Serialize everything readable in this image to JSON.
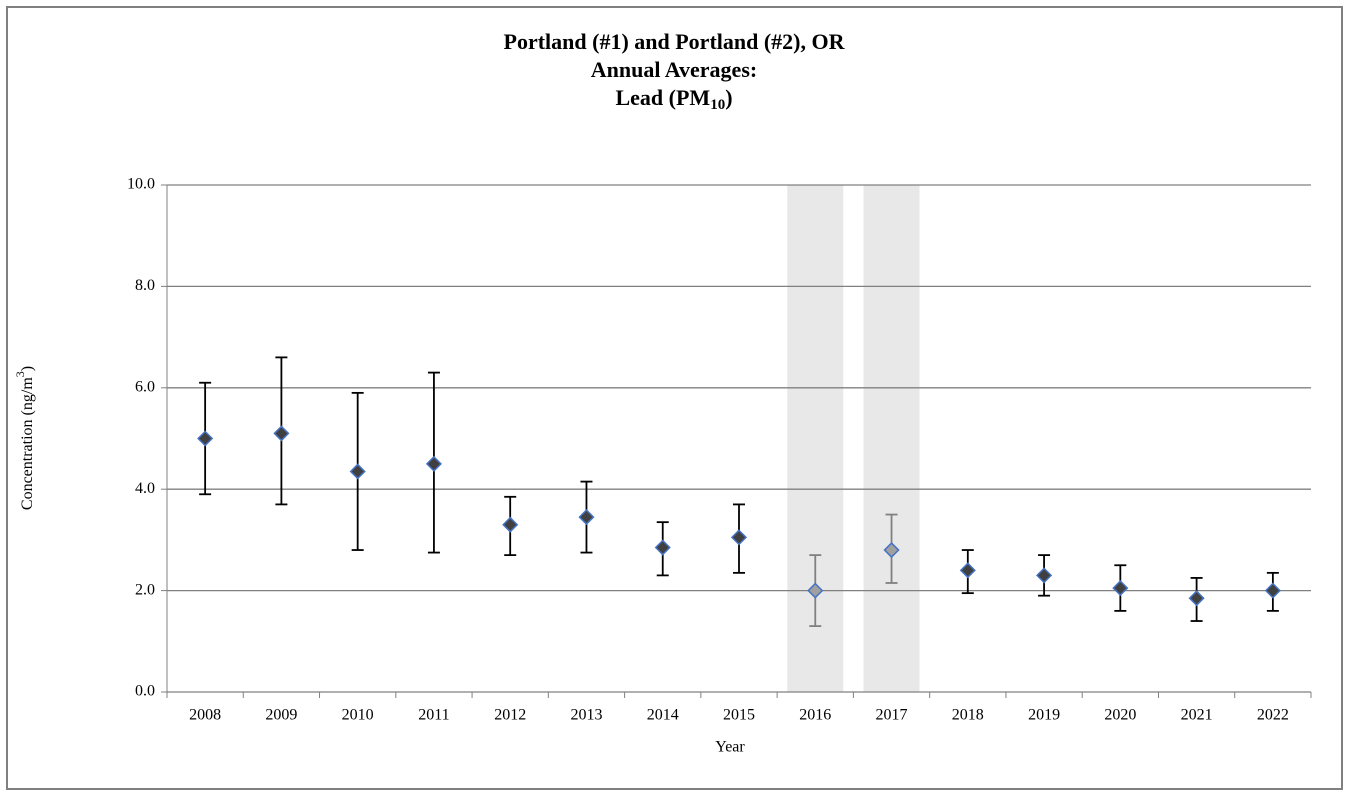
{
  "chart_data": {
    "type": "errorbar",
    "title_lines": [
      "Portland (#1) and Portland (#2), OR",
      "Annual Averages:"
    ],
    "title_last": {
      "before": "Lead (PM",
      "sub": "10",
      "after": ")"
    },
    "y_label": {
      "before": "Concentration (ng/m",
      "sup": "3",
      "after": ")"
    },
    "x_label": "Year",
    "categories": [
      "2008",
      "2009",
      "2010",
      "2011",
      "2012",
      "2013",
      "2014",
      "2015",
      "2016",
      "2017",
      "2018",
      "2019",
      "2020",
      "2021",
      "2022"
    ],
    "values": [
      5.0,
      5.1,
      4.35,
      4.5,
      3.3,
      3.45,
      2.85,
      3.05,
      2.0,
      2.8,
      2.4,
      2.3,
      2.05,
      1.85,
      2.0
    ],
    "errors_minus": [
      1.1,
      1.4,
      1.55,
      1.75,
      0.6,
      0.7,
      0.55,
      0.7,
      0.7,
      0.65,
      0.45,
      0.4,
      0.45,
      0.45,
      0.4
    ],
    "errors_plus": [
      1.1,
      1.5,
      1.55,
      1.8,
      0.55,
      0.7,
      0.5,
      0.65,
      0.7,
      0.7,
      0.4,
      0.4,
      0.45,
      0.4,
      0.35
    ],
    "bar_colors": [
      "#000000",
      "#000000",
      "#000000",
      "#000000",
      "#000000",
      "#000000",
      "#000000",
      "#000000",
      "#808080",
      "#808080",
      "#000000",
      "#000000",
      "#000000",
      "#000000",
      "#000000"
    ],
    "marker_fill": "#404040",
    "marker_outline": "#4472c4",
    "shaded_categories": [
      "2016",
      "2017"
    ],
    "shade_color": "#e8e8e8",
    "ylim": [
      0,
      10
    ],
    "yticks": [
      {
        "value": 0,
        "label": "0.0"
      },
      {
        "value": 2,
        "label": "2.0"
      },
      {
        "value": 4,
        "label": "4.0"
      },
      {
        "value": 6,
        "label": "6.0"
      },
      {
        "value": 8,
        "label": "8.0"
      },
      {
        "value": 10,
        "label": "10.0"
      }
    ],
    "grid": true
  }
}
